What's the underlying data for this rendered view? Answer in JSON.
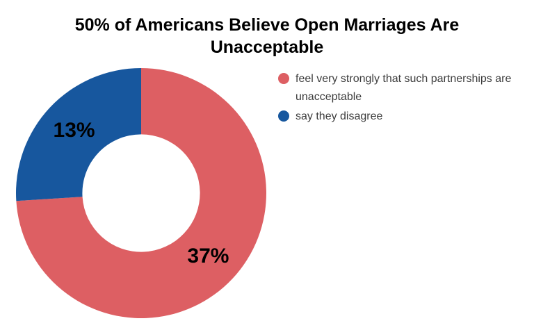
{
  "header": {
    "title_lines": [
      "50% of Americans Believe Open Marriages Are",
      "Unacceptable"
    ]
  },
  "chart_data": {
    "type": "pie",
    "variant": "donut",
    "title": "50% of Americans Believe Open Marriages Are Unacceptable",
    "slices": [
      {
        "label": "feel very strongly that such partnerships are unacceptable",
        "value": 37,
        "value_label": "37%",
        "color": "#DD5F63"
      },
      {
        "label": "say they disagree",
        "value": 13,
        "value_label": "13%",
        "color": "#17579E"
      }
    ],
    "start_angle_deg": 0,
    "direction": "clockwise",
    "inner_radius_ratio": 0.47,
    "legend_position": "right",
    "grid": false
  },
  "colors": {
    "background": "#FFFFFF",
    "title_text": "#000000",
    "slice_label_text": "#000000",
    "legend_text": "#3C3C3C"
  }
}
